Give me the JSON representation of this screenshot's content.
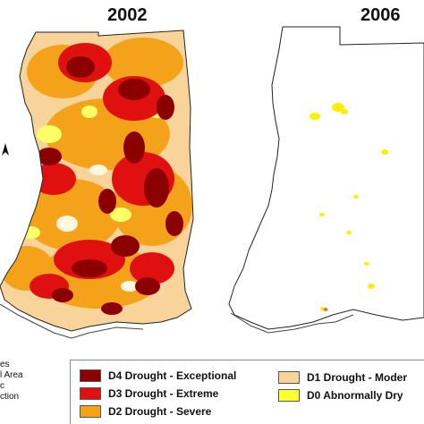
{
  "maps": {
    "left_year": "2002",
    "right_year": "2006"
  },
  "left_legend": {
    "lines": [
      "es",
      "l Area",
      "c",
      "ction"
    ]
  },
  "north_arrow": {
    "label": "N",
    "icon": "north-arrow-icon"
  },
  "legend": {
    "items": [
      {
        "label": "D4 Drought - Exceptional",
        "color": "#8b0000"
      },
      {
        "label": "D3 Drought - Extreme",
        "color": "#e01010"
      },
      {
        "label": "D2 Drought - Severe",
        "color": "#f5a21b"
      },
      {
        "label": "D1 Drought - Moder",
        "color": "#f8d39a"
      },
      {
        "label": "D0 Abnormally Dry",
        "color": "#ffff33"
      }
    ]
  }
}
